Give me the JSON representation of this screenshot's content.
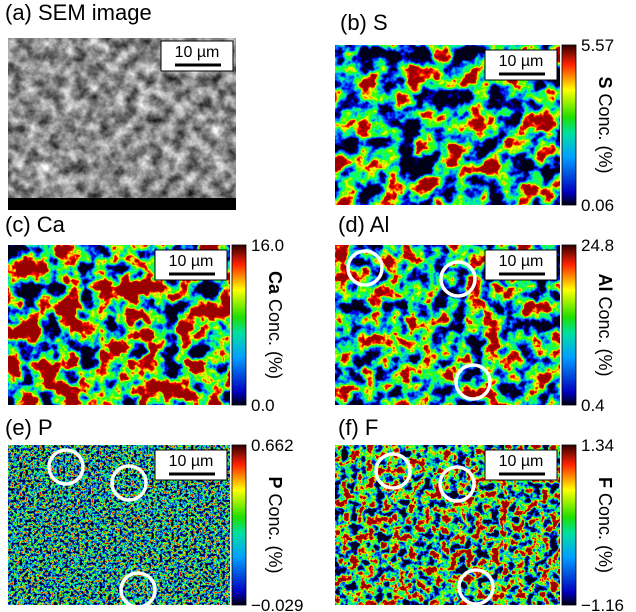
{
  "panels": [
    {
      "label": "(a) SEM image",
      "scale_bar": "10 µm"
    },
    {
      "label": "(b) S",
      "scale_bar": "10 µm",
      "colorbar": {
        "max": "5.57",
        "min": "0.06",
        "element": "S",
        "unit": "Conc. (%)"
      }
    },
    {
      "label": "(c) Ca",
      "scale_bar": "10 µm",
      "colorbar": {
        "max": "16.0",
        "min": "0.0",
        "element": "Ca",
        "unit": "Conc. (%)"
      }
    },
    {
      "label": "(d) Al",
      "scale_bar": "10 µm",
      "colorbar": {
        "max": "24.8",
        "min": "0.4",
        "element": "Al",
        "unit": "Conc. (%)"
      }
    },
    {
      "label": "(e) P",
      "scale_bar": "10 µm",
      "colorbar": {
        "max": "0.662",
        "min": "−0.029",
        "element": "P",
        "unit": "Conc. (%)"
      }
    },
    {
      "label": "(f) F",
      "scale_bar": "10 µm",
      "colorbar": {
        "max": "1.34",
        "min": "−1.16",
        "element": "F",
        "unit": "Conc. (%)"
      }
    }
  ]
}
